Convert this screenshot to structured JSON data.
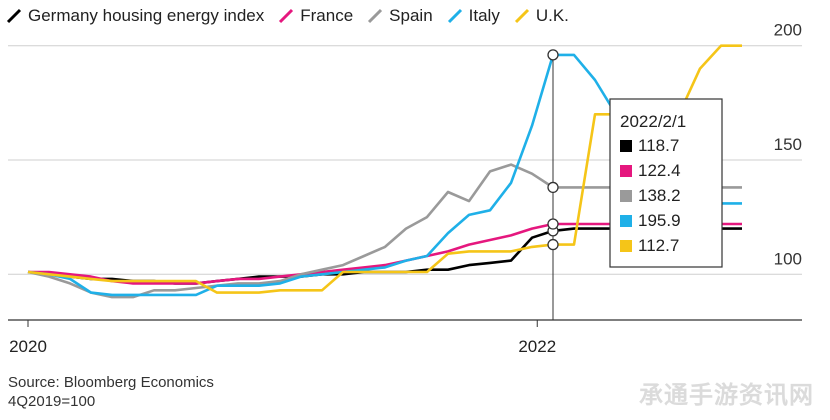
{
  "chart_data": {
    "type": "line",
    "x_ticks": [
      "2020",
      "2022"
    ],
    "y_ticks": [
      100,
      150,
      200
    ],
    "ylim": [
      80,
      220
    ],
    "grid": true,
    "legend_position": "top",
    "series": [
      {
        "name": "Germany housing energy index",
        "color": "#000000",
        "points": [
          [
            0,
            101
          ],
          [
            2,
            100
          ],
          [
            4,
            99
          ],
          [
            6,
            98
          ],
          [
            8,
            98
          ],
          [
            10,
            97
          ],
          [
            12,
            97
          ],
          [
            14,
            96
          ],
          [
            16,
            96
          ],
          [
            18,
            97
          ],
          [
            20,
            98
          ],
          [
            22,
            99
          ],
          [
            24,
            99
          ],
          [
            26,
            99
          ],
          [
            28,
            100
          ],
          [
            30,
            100
          ],
          [
            32,
            101
          ],
          [
            34,
            101
          ],
          [
            36,
            101
          ],
          [
            38,
            102
          ],
          [
            40,
            102
          ],
          [
            42,
            104
          ],
          [
            44,
            105
          ],
          [
            46,
            106
          ],
          [
            48,
            116
          ],
          [
            50,
            119
          ],
          [
            52,
            120
          ],
          [
            54,
            120
          ],
          [
            56,
            120
          ],
          [
            58,
            120
          ],
          [
            60,
            120
          ],
          [
            62,
            120
          ],
          [
            64,
            120
          ],
          [
            66,
            120
          ],
          [
            68,
            120
          ]
        ]
      },
      {
        "name": "France",
        "color": "#e5177e",
        "points": [
          [
            0,
            101
          ],
          [
            2,
            101
          ],
          [
            4,
            100
          ],
          [
            6,
            99
          ],
          [
            8,
            97
          ],
          [
            10,
            96
          ],
          [
            12,
            96
          ],
          [
            14,
            96
          ],
          [
            16,
            96
          ],
          [
            18,
            97
          ],
          [
            20,
            98
          ],
          [
            22,
            98
          ],
          [
            24,
            99
          ],
          [
            26,
            100
          ],
          [
            28,
            101
          ],
          [
            30,
            102
          ],
          [
            32,
            103
          ],
          [
            34,
            104
          ],
          [
            36,
            106
          ],
          [
            38,
            108
          ],
          [
            40,
            110
          ],
          [
            42,
            113
          ],
          [
            44,
            115
          ],
          [
            46,
            117
          ],
          [
            48,
            120
          ],
          [
            50,
            122
          ],
          [
            52,
            122
          ],
          [
            54,
            122
          ],
          [
            56,
            122
          ],
          [
            58,
            122
          ],
          [
            60,
            122
          ],
          [
            62,
            122
          ],
          [
            64,
            122
          ],
          [
            66,
            122
          ],
          [
            68,
            122
          ]
        ]
      },
      {
        "name": "Spain",
        "color": "#9a9a9a",
        "points": [
          [
            0,
            101
          ],
          [
            2,
            99
          ],
          [
            4,
            96
          ],
          [
            6,
            92
          ],
          [
            8,
            90
          ],
          [
            10,
            90
          ],
          [
            12,
            93
          ],
          [
            14,
            93
          ],
          [
            16,
            94
          ],
          [
            18,
            95
          ],
          [
            20,
            96
          ],
          [
            22,
            96
          ],
          [
            24,
            97
          ],
          [
            26,
            100
          ],
          [
            28,
            102
          ],
          [
            30,
            104
          ],
          [
            32,
            108
          ],
          [
            34,
            112
          ],
          [
            36,
            120
          ],
          [
            38,
            125
          ],
          [
            40,
            136
          ],
          [
            42,
            132
          ],
          [
            44,
            145
          ],
          [
            46,
            148
          ],
          [
            48,
            144
          ],
          [
            50,
            138
          ],
          [
            52,
            138
          ],
          [
            54,
            138
          ],
          [
            56,
            138
          ],
          [
            58,
            138
          ],
          [
            60,
            138
          ],
          [
            62,
            138
          ],
          [
            64,
            138
          ],
          [
            66,
            138
          ],
          [
            68,
            138
          ]
        ]
      },
      {
        "name": "Italy",
        "color": "#1fb0e8",
        "points": [
          [
            0,
            101
          ],
          [
            2,
            100
          ],
          [
            4,
            98
          ],
          [
            6,
            92
          ],
          [
            8,
            91
          ],
          [
            10,
            91
          ],
          [
            12,
            91
          ],
          [
            14,
            91
          ],
          [
            16,
            91
          ],
          [
            18,
            95
          ],
          [
            20,
            95
          ],
          [
            22,
            95
          ],
          [
            24,
            96
          ],
          [
            26,
            99
          ],
          [
            28,
            100
          ],
          [
            30,
            101
          ],
          [
            32,
            102
          ],
          [
            34,
            103
          ],
          [
            36,
            106
          ],
          [
            38,
            108
          ],
          [
            40,
            118
          ],
          [
            42,
            126
          ],
          [
            44,
            128
          ],
          [
            46,
            140
          ],
          [
            48,
            165
          ],
          [
            50,
            196
          ],
          [
            52,
            196
          ],
          [
            54,
            185
          ],
          [
            56,
            170
          ],
          [
            58,
            155
          ],
          [
            60,
            145
          ],
          [
            62,
            138
          ],
          [
            64,
            133
          ],
          [
            66,
            131
          ],
          [
            68,
            131
          ]
        ]
      },
      {
        "name": "U.K.",
        "color": "#f5c518",
        "points": [
          [
            0,
            101
          ],
          [
            2,
            100
          ],
          [
            4,
            99
          ],
          [
            6,
            98
          ],
          [
            8,
            97
          ],
          [
            10,
            97
          ],
          [
            12,
            97
          ],
          [
            14,
            97
          ],
          [
            16,
            97
          ],
          [
            18,
            92
          ],
          [
            20,
            92
          ],
          [
            22,
            92
          ],
          [
            24,
            93
          ],
          [
            26,
            93
          ],
          [
            28,
            93
          ],
          [
            30,
            101
          ],
          [
            32,
            101
          ],
          [
            34,
            101
          ],
          [
            36,
            101
          ],
          [
            38,
            101
          ],
          [
            40,
            109
          ],
          [
            42,
            110
          ],
          [
            44,
            110
          ],
          [
            46,
            110
          ],
          [
            48,
            112
          ],
          [
            50,
            113
          ],
          [
            52,
            113
          ],
          [
            54,
            170
          ],
          [
            56,
            170
          ],
          [
            58,
            170
          ],
          [
            60,
            170
          ],
          [
            62,
            170
          ],
          [
            64,
            190
          ],
          [
            66,
            200
          ],
          [
            68,
            200
          ]
        ]
      }
    ],
    "annotation": {
      "x_index": 50,
      "date": "2022/2/1",
      "rows": [
        {
          "value": "118.7",
          "color": "#000000",
          "y": 119
        },
        {
          "value": "122.4",
          "color": "#e5177e",
          "y": 122
        },
        {
          "value": "138.2",
          "color": "#9a9a9a",
          "y": 138
        },
        {
          "value": "195.9",
          "color": "#1fb0e8",
          "y": 196
        },
        {
          "value": "112.7",
          "color": "#f5c518",
          "y": 113
        }
      ]
    }
  },
  "source": {
    "line1": "Source: Bloomberg Economics",
    "line2": "4Q2019=100"
  },
  "watermark": "承通手游资讯网"
}
